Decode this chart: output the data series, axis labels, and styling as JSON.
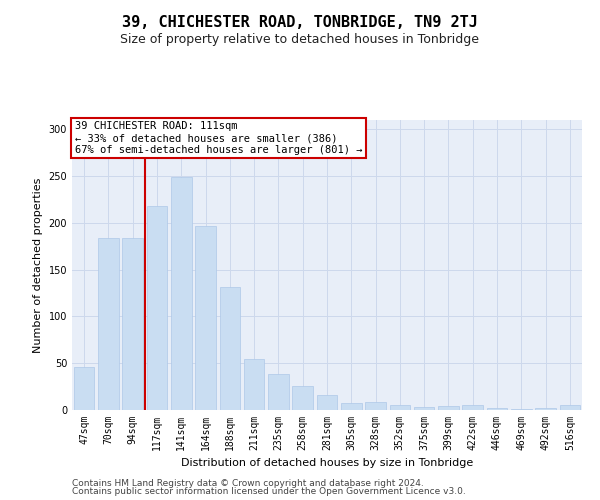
{
  "title": "39, CHICHESTER ROAD, TONBRIDGE, TN9 2TJ",
  "subtitle": "Size of property relative to detached houses in Tonbridge",
  "xlabel": "Distribution of detached houses by size in Tonbridge",
  "ylabel": "Number of detached properties",
  "categories": [
    "47sqm",
    "70sqm",
    "94sqm",
    "117sqm",
    "141sqm",
    "164sqm",
    "188sqm",
    "211sqm",
    "235sqm",
    "258sqm",
    "281sqm",
    "305sqm",
    "328sqm",
    "352sqm",
    "375sqm",
    "399sqm",
    "422sqm",
    "446sqm",
    "469sqm",
    "492sqm",
    "516sqm"
  ],
  "values": [
    46,
    184,
    184,
    218,
    249,
    197,
    132,
    55,
    38,
    26,
    16,
    8,
    9,
    5,
    3,
    4,
    5,
    2,
    1,
    2,
    5
  ],
  "bar_color": "#c9ddf2",
  "bar_edge_color": "#aec8e8",
  "grid_color": "#cdd8ec",
  "bg_color": "#e8eef8",
  "vline_color": "#cc0000",
  "vline_x": 2.5,
  "annotation_lines": [
    "39 CHICHESTER ROAD: 111sqm",
    "← 33% of detached houses are smaller (386)",
    "67% of semi-detached houses are larger (801) →"
  ],
  "annotation_box_color": "#ffffff",
  "annotation_box_edge": "#cc0000",
  "footer_line1": "Contains HM Land Registry data © Crown copyright and database right 2024.",
  "footer_line2": "Contains public sector information licensed under the Open Government Licence v3.0.",
  "ylim": [
    0,
    310
  ],
  "yticks": [
    0,
    50,
    100,
    150,
    200,
    250,
    300
  ],
  "title_fontsize": 11,
  "subtitle_fontsize": 9,
  "ylabel_fontsize": 8,
  "xlabel_fontsize": 8,
  "tick_fontsize": 7,
  "footer_fontsize": 6.5,
  "ann_fontsize": 7.5
}
